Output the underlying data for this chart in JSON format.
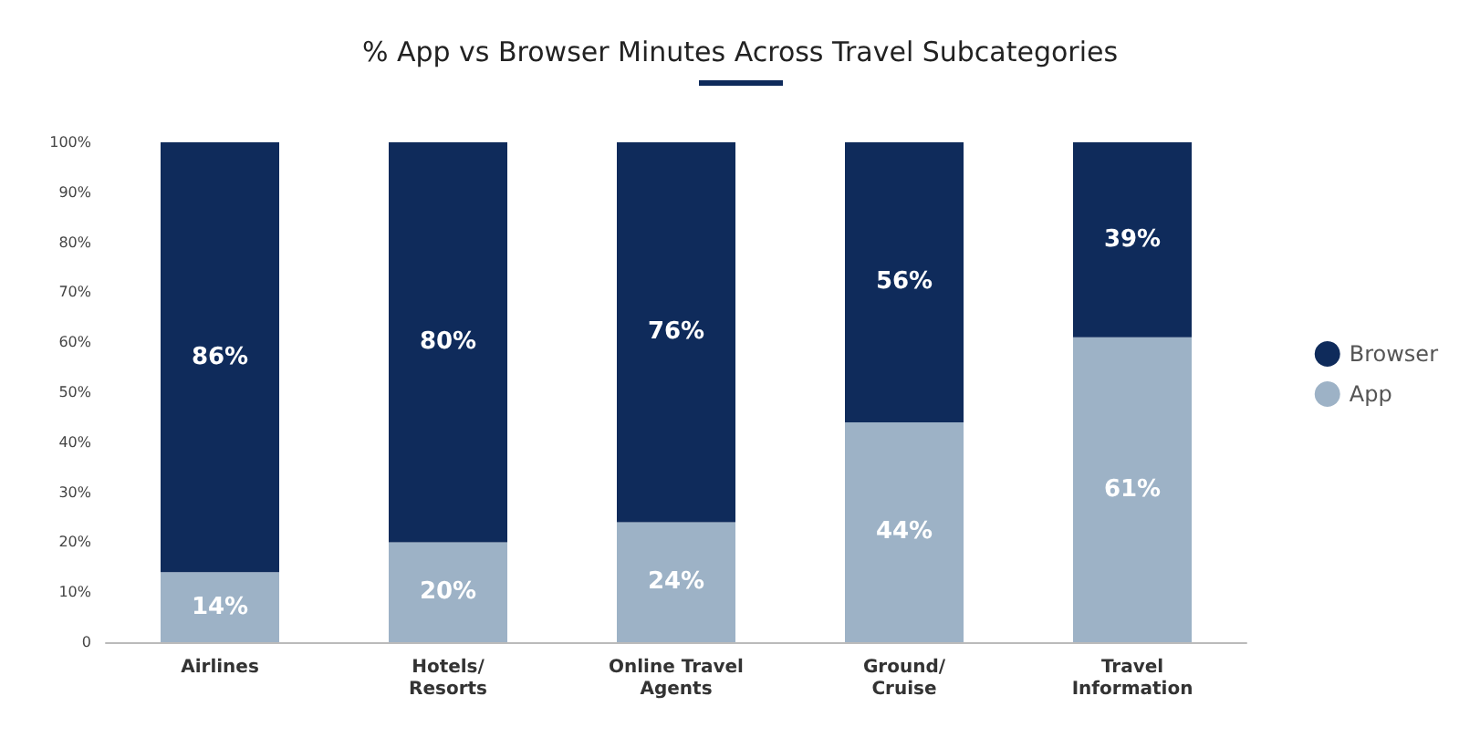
{
  "chart_data": {
    "type": "bar",
    "title": "% App vs Browser Minutes Across Travel Subcategories",
    "categories": [
      "Airlines",
      "Hotels/\nResorts",
      "Online Travel\nAgents",
      "Ground/\nCruise",
      "Travel\nInformation"
    ],
    "series": [
      {
        "name": "App",
        "color": "#9db2c6",
        "values": [
          14,
          20,
          24,
          44,
          61
        ],
        "value_labels": [
          "14%",
          "20%",
          "24%",
          "44%",
          "61%"
        ]
      },
      {
        "name": "Browser",
        "color": "#0f2b5b",
        "values": [
          86,
          80,
          76,
          56,
          39
        ],
        "value_labels": [
          "86%",
          "80%",
          "76%",
          "56%",
          "39%"
        ]
      }
    ],
    "stacked": true,
    "ylim": [
      0,
      100
    ],
    "yticks": [
      0,
      {
        "value": 10,
        "label": "10%"
      },
      {
        "value": 20,
        "label": "20%"
      },
      {
        "value": 30,
        "label": "30%"
      },
      {
        "value": 40,
        "label": "40%"
      },
      {
        "value": 50,
        "label": "50%"
      },
      {
        "value": 60,
        "label": "60%"
      },
      {
        "value": 70,
        "label": "70%"
      },
      {
        "value": 80,
        "label": "80%"
      },
      {
        "value": 90,
        "label": "90%"
      },
      {
        "value": 100,
        "label": "100%"
      }
    ],
    "grid": false,
    "legend": "right"
  }
}
